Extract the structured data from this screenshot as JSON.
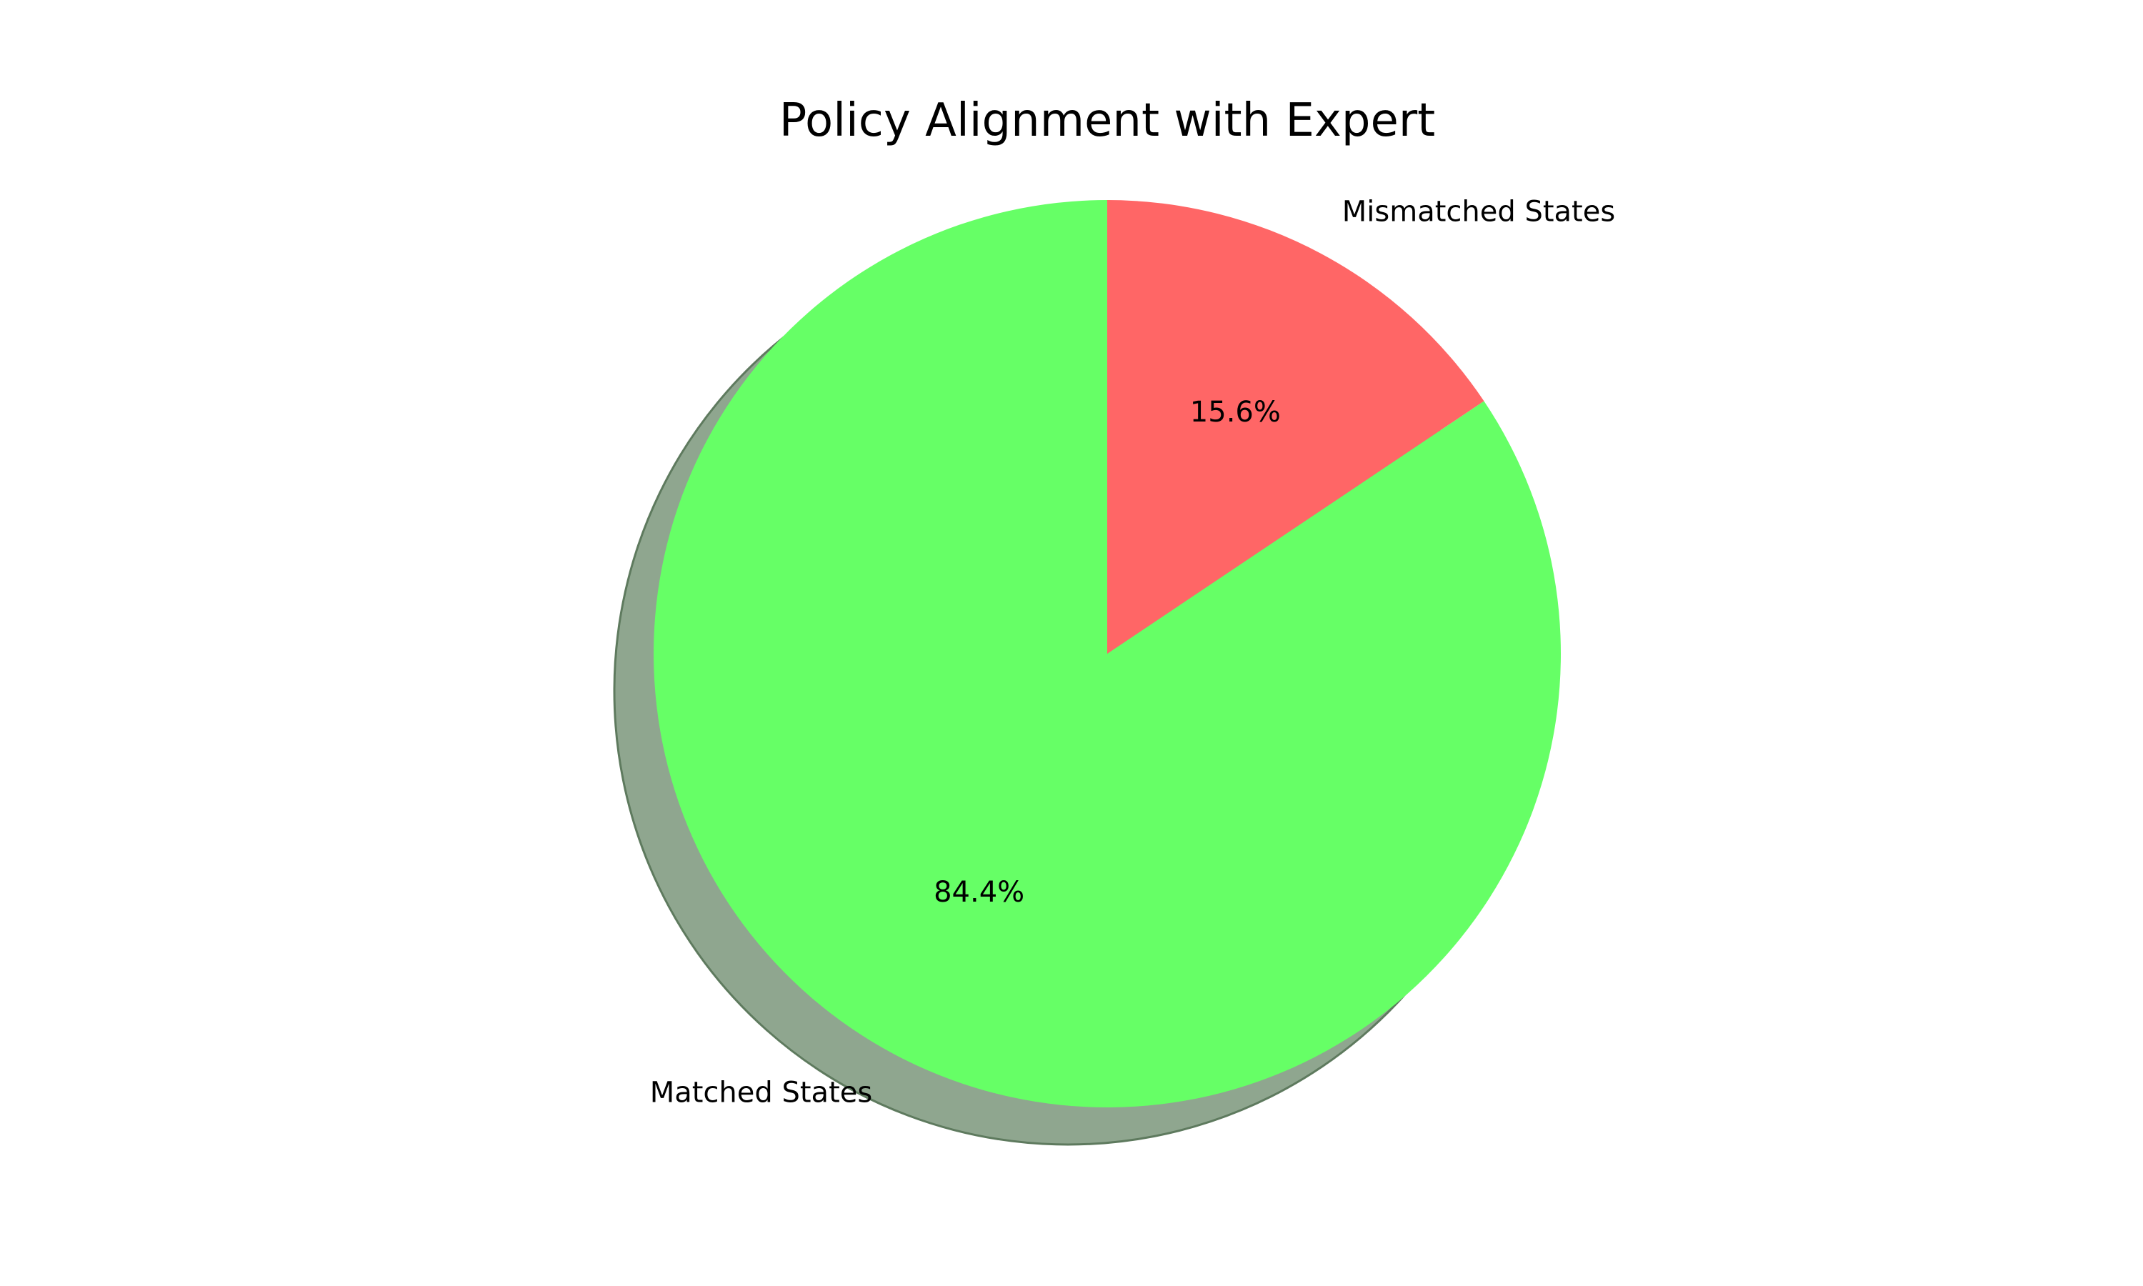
{
  "chart_data": {
    "type": "pie",
    "title": "Policy Alignment with Expert",
    "categories": [
      "Matched States",
      "Mismatched States"
    ],
    "values": [
      84.4,
      15.6
    ],
    "value_labels": [
      "84.4%",
      "15.6%"
    ],
    "colors": [
      "#66ff66",
      "#ff6666"
    ],
    "shadow": true,
    "shadow_color": "#8fa68f",
    "start_angle_deg": 90,
    "direction": "counterclockwise",
    "legend": "none"
  }
}
